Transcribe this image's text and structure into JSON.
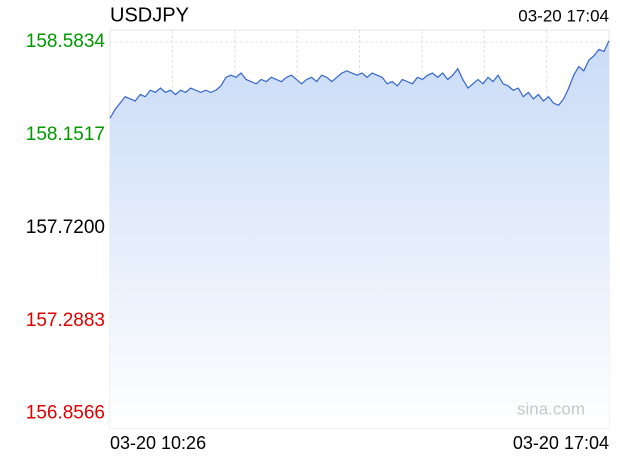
{
  "chart_data": {
    "type": "line",
    "title": "USDJPY",
    "timestamp": "03-20 17:04",
    "watermark": "sina.com",
    "categories": [
      "03-20 10:26",
      null,
      null,
      null,
      null,
      null,
      null,
      null,
      null,
      null,
      null,
      null,
      null,
      null,
      null,
      null,
      null,
      null,
      null,
      null,
      null,
      null,
      null,
      null,
      null,
      null,
      null,
      null,
      null,
      null,
      null,
      null,
      null,
      null,
      null,
      null,
      null,
      null,
      null,
      null,
      null,
      null,
      null,
      null,
      null,
      null,
      null,
      null,
      null,
      null,
      null,
      null,
      null,
      null,
      null,
      null,
      null,
      null,
      null,
      null,
      null,
      null,
      null,
      null,
      null,
      null,
      null,
      null,
      null,
      null,
      null,
      null,
      null,
      null,
      null,
      null,
      null,
      null,
      null,
      null,
      null,
      null,
      null,
      null,
      null,
      null,
      null,
      null,
      null,
      null,
      null,
      null,
      null,
      null,
      null,
      null,
      null,
      null,
      null,
      "03-20 17:04"
    ],
    "series": [
      {
        "name": "USDJPY",
        "color": "#3366cc",
        "fill": "#d2e0f8",
        "values": [
          158.23,
          158.27,
          158.3,
          158.33,
          158.32,
          158.31,
          158.34,
          158.33,
          158.36,
          158.35,
          158.37,
          158.35,
          158.36,
          158.34,
          158.36,
          158.35,
          158.37,
          158.36,
          158.35,
          158.36,
          158.35,
          158.36,
          158.38,
          158.42,
          158.43,
          158.42,
          158.44,
          158.41,
          158.4,
          158.39,
          158.41,
          158.4,
          158.42,
          158.41,
          158.4,
          158.42,
          158.43,
          158.41,
          158.39,
          158.41,
          158.42,
          158.4,
          158.43,
          158.42,
          158.4,
          158.42,
          158.44,
          158.45,
          158.44,
          158.43,
          158.44,
          158.42,
          158.44,
          158.43,
          158.42,
          158.39,
          158.4,
          158.38,
          158.41,
          158.4,
          158.39,
          158.42,
          158.41,
          158.43,
          158.44,
          158.42,
          158.44,
          158.41,
          158.43,
          158.46,
          158.41,
          158.37,
          158.39,
          158.41,
          158.39,
          158.42,
          158.4,
          158.43,
          158.39,
          158.38,
          158.36,
          158.37,
          158.33,
          158.35,
          158.32,
          158.34,
          158.31,
          158.33,
          158.3,
          158.29,
          158.32,
          158.37,
          158.43,
          158.47,
          158.45,
          158.5,
          158.52,
          158.55,
          158.54,
          158.59
        ]
      }
    ],
    "ylim": [
      156.79,
      158.64
    ],
    "yticks": [
      {
        "value": 158.5834,
        "label": "158.5834"
      },
      {
        "value": 158.1517,
        "label": "158.1517"
      },
      {
        "value": 157.72,
        "label": "157.7200"
      },
      {
        "value": 157.2883,
        "label": "157.2883"
      },
      {
        "value": 156.8566,
        "label": "156.8566"
      }
    ],
    "ytick_colors": [
      "#009900",
      "#009900",
      "#000000",
      "#e00000",
      "#e00000"
    ],
    "grid": true
  }
}
